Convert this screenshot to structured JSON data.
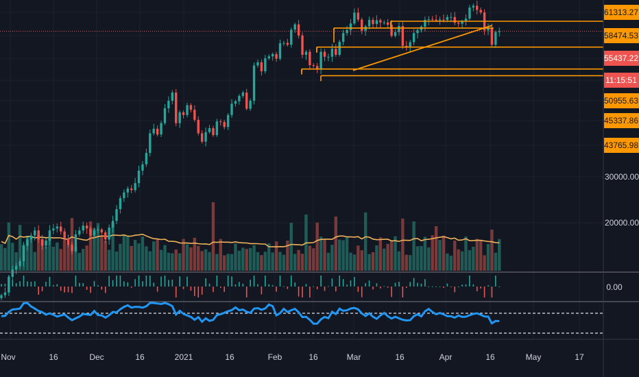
{
  "chart_data": {
    "type": "candlestick",
    "symbol": "",
    "price_axis": {
      "labels": [
        "61313.27",
        "58474.53",
        "55437.22",
        "50955.63",
        "45337.86",
        "43765.98",
        "30000.00",
        "20000.00"
      ],
      "current_price": "55437.22",
      "countdown": "11:15:51"
    },
    "oscillator_axis": {
      "labels": [
        "0.00"
      ]
    },
    "x_axis": {
      "labels": [
        "Nov",
        "16",
        "Dec",
        "16",
        "2021",
        "16",
        "Feb",
        "16",
        "Mar",
        "16",
        "Apr",
        "16",
        "May",
        "17"
      ]
    },
    "horizontal_levels": [
      58474.53,
      56400,
      50955.63,
      45337.86,
      43765.98
    ],
    "trendline": {
      "from_date": "Feb 26",
      "from_price": 45000,
      "to_date": "Apr 14",
      "to_price": 57200
    },
    "close_series_approx": [
      13600,
      13800,
      15000,
      15600,
      15900,
      16300,
      17700,
      18300,
      18700,
      19200,
      18300,
      17700,
      18200,
      19200,
      19400,
      19600,
      19100,
      18400,
      17800,
      17200,
      18800,
      19200,
      19700,
      19400,
      18700,
      19200,
      19300,
      19000,
      18300,
      19500,
      20200,
      21500,
      22800,
      23500,
      24000,
      23800,
      24700,
      26400,
      27300,
      29000,
      32200,
      33000,
      32000,
      34000,
      36800,
      38300,
      40000,
      34000,
      36000,
      35500,
      37400,
      36500,
      34600,
      32200,
      30800,
      32400,
      33100,
      31900,
      34300,
      34200,
      33300,
      35500,
      37700,
      38200,
      39300,
      40000,
      36700,
      38300,
      46200,
      47000,
      44800,
      48000,
      48500,
      49100,
      47900,
      52000,
      52100,
      51600,
      55900,
      57500,
      54200,
      48900,
      49700,
      46300,
      46100,
      45200,
      49700,
      48400,
      48400,
      50500,
      48900,
      52400,
      54900,
      55800,
      57800,
      61200,
      59000,
      55600,
      56900,
      58900,
      57600,
      58800,
      58100,
      58100,
      57400,
      54100,
      55200,
      57000,
      51300,
      50900,
      52300,
      54900,
      55800,
      56800,
      58900,
      59100,
      59000,
      58700,
      59000,
      58900,
      59800,
      59800,
      58000,
      57700,
      58500,
      59300,
      62900,
      63500,
      62100,
      61300,
      55700,
      56400,
      51600,
      55200,
      55437
    ]
  }
}
